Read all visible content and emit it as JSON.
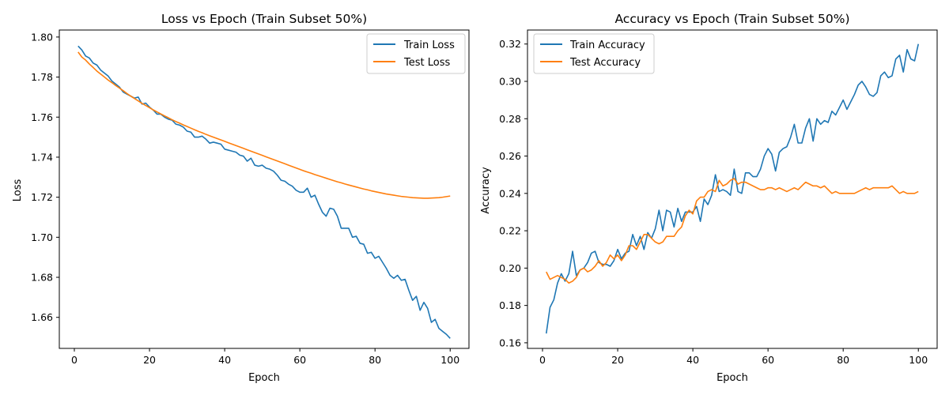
{
  "chart_data": [
    {
      "type": "line",
      "title": "Loss vs Epoch (Train Subset 50%)",
      "xlabel": "Epoch",
      "ylabel": "Loss",
      "xlim": [
        -4,
        105
      ],
      "ylim": [
        1.6445,
        1.8035
      ],
      "xticks": [
        0,
        20,
        40,
        60,
        80,
        100
      ],
      "yticks": [
        1.66,
        1.68,
        1.7,
        1.72,
        1.74,
        1.76,
        1.78,
        1.8
      ],
      "ytick_format": 2,
      "grid": false,
      "legend": "top-right",
      "x": [
        1,
        2,
        3,
        4,
        5,
        6,
        7,
        8,
        9,
        10,
        11,
        12,
        13,
        14,
        15,
        16,
        17,
        18,
        19,
        20,
        21,
        22,
        23,
        24,
        25,
        26,
        27,
        28,
        29,
        30,
        31,
        32,
        33,
        34,
        35,
        36,
        37,
        38,
        39,
        40,
        41,
        42,
        43,
        44,
        45,
        46,
        47,
        48,
        49,
        50,
        51,
        52,
        53,
        54,
        55,
        56,
        57,
        58,
        59,
        60,
        61,
        62,
        63,
        64,
        65,
        66,
        67,
        68,
        69,
        70,
        71,
        72,
        73,
        74,
        75,
        76,
        77,
        78,
        79,
        80,
        81,
        82,
        83,
        84,
        85,
        86,
        87,
        88,
        89,
        90,
        91,
        92,
        93,
        94,
        95,
        96,
        97,
        98,
        99,
        100
      ],
      "series": [
        {
          "name": "Train Loss",
          "color": "#1f77b4",
          "values": [
            1.7955,
            1.7935,
            1.7905,
            1.7895,
            1.787,
            1.786,
            1.7835,
            1.782,
            1.7805,
            1.778,
            1.7765,
            1.775,
            1.7725,
            1.7715,
            1.7705,
            1.7695,
            1.77,
            1.7665,
            1.767,
            1.765,
            1.7635,
            1.7615,
            1.7615,
            1.76,
            1.759,
            1.7585,
            1.7565,
            1.756,
            1.755,
            1.753,
            1.7525,
            1.75,
            1.75,
            1.7505,
            1.749,
            1.747,
            1.7475,
            1.747,
            1.7465,
            1.744,
            1.7435,
            1.743,
            1.7425,
            1.741,
            1.7405,
            1.738,
            1.7395,
            1.736,
            1.7355,
            1.736,
            1.7345,
            1.734,
            1.733,
            1.731,
            1.7285,
            1.728,
            1.7265,
            1.7255,
            1.7235,
            1.7225,
            1.7225,
            1.7245,
            1.72,
            1.721,
            1.7165,
            1.7125,
            1.7105,
            1.7145,
            1.714,
            1.7105,
            1.7045,
            1.7045,
            1.7045,
            1.7,
            1.7005,
            1.697,
            1.6965,
            1.692,
            1.6925,
            1.6895,
            1.6905,
            1.6875,
            1.6845,
            1.681,
            1.6795,
            1.681,
            1.6785,
            1.679,
            1.6735,
            1.6685,
            1.6705,
            1.6635,
            1.6675,
            1.6645,
            1.6575,
            1.659,
            1.6545,
            1.653,
            1.6515,
            1.6495
          ]
        },
        {
          "name": "Test Loss",
          "color": "#ff7f0e",
          "values": [
            1.7925,
            1.79,
            1.7885,
            1.7865,
            1.7848,
            1.783,
            1.7815,
            1.78,
            1.7785,
            1.7772,
            1.7758,
            1.7745,
            1.7732,
            1.7718,
            1.7705,
            1.7693,
            1.7681,
            1.7669,
            1.7658,
            1.7647,
            1.7636,
            1.7626,
            1.7616,
            1.7606,
            1.7597,
            1.7587,
            1.7578,
            1.757,
            1.7561,
            1.7553,
            1.7545,
            1.7537,
            1.7529,
            1.7522,
            1.7514,
            1.7507,
            1.75,
            1.7493,
            1.7486,
            1.7479,
            1.7472,
            1.7465,
            1.7458,
            1.7451,
            1.7444,
            1.7437,
            1.743,
            1.7423,
            1.7416,
            1.7409,
            1.7402,
            1.7395,
            1.7388,
            1.7381,
            1.7374,
            1.7367,
            1.736,
            1.7353,
            1.7346,
            1.7339,
            1.7332,
            1.7326,
            1.732,
            1.7313,
            1.7307,
            1.7301,
            1.7295,
            1.7289,
            1.7283,
            1.7277,
            1.7272,
            1.7266,
            1.7261,
            1.7256,
            1.7251,
            1.7246,
            1.7241,
            1.7237,
            1.7232,
            1.7228,
            1.7224,
            1.722,
            1.7216,
            1.7213,
            1.721,
            1.7207,
            1.7204,
            1.7202,
            1.72,
            1.7198,
            1.7197,
            1.7196,
            1.7195,
            1.7195,
            1.7196,
            1.7197,
            1.7198,
            1.72,
            1.7203,
            1.7206
          ]
        }
      ]
    },
    {
      "type": "line",
      "title": "Accuracy vs Epoch (Train Subset 50%)",
      "xlabel": "Epoch",
      "ylabel": "Accuracy",
      "xlim": [
        -4,
        105
      ],
      "ylim": [
        0.157,
        0.3275
      ],
      "xticks": [
        0,
        20,
        40,
        60,
        80,
        100
      ],
      "yticks": [
        0.16,
        0.18,
        0.2,
        0.22,
        0.24,
        0.26,
        0.28,
        0.3,
        0.32
      ],
      "ytick_format": 2,
      "grid": false,
      "legend": "top-left",
      "x": [
        1,
        2,
        3,
        4,
        5,
        6,
        7,
        8,
        9,
        10,
        11,
        12,
        13,
        14,
        15,
        16,
        17,
        18,
        19,
        20,
        21,
        22,
        23,
        24,
        25,
        26,
        27,
        28,
        29,
        30,
        31,
        32,
        33,
        34,
        35,
        36,
        37,
        38,
        39,
        40,
        41,
        42,
        43,
        44,
        45,
        46,
        47,
        48,
        49,
        50,
        51,
        52,
        53,
        54,
        55,
        56,
        57,
        58,
        59,
        60,
        61,
        62,
        63,
        64,
        65,
        66,
        67,
        68,
        69,
        70,
        71,
        72,
        73,
        74,
        75,
        76,
        77,
        78,
        79,
        80,
        81,
        82,
        83,
        84,
        85,
        86,
        87,
        88,
        89,
        90,
        91,
        92,
        93,
        94,
        95,
        96,
        97,
        98,
        99,
        100
      ],
      "series": [
        {
          "name": "Train Accuracy",
          "color": "#1f77b4",
          "values": [
            0.165,
            0.179,
            0.183,
            0.192,
            0.197,
            0.193,
            0.197,
            0.209,
            0.196,
            0.199,
            0.2,
            0.203,
            0.208,
            0.209,
            0.203,
            0.202,
            0.202,
            0.201,
            0.204,
            0.21,
            0.205,
            0.208,
            0.209,
            0.218,
            0.212,
            0.217,
            0.21,
            0.219,
            0.216,
            0.221,
            0.231,
            0.22,
            0.231,
            0.23,
            0.222,
            0.232,
            0.225,
            0.23,
            0.23,
            0.23,
            0.233,
            0.225,
            0.237,
            0.234,
            0.239,
            0.25,
            0.241,
            0.242,
            0.241,
            0.239,
            0.253,
            0.241,
            0.24,
            0.251,
            0.251,
            0.249,
            0.249,
            0.253,
            0.26,
            0.264,
            0.261,
            0.252,
            0.262,
            0.264,
            0.265,
            0.27,
            0.277,
            0.267,
            0.267,
            0.275,
            0.28,
            0.268,
            0.28,
            0.277,
            0.279,
            0.278,
            0.284,
            0.282,
            0.286,
            0.29,
            0.285,
            0.289,
            0.293,
            0.298,
            0.3,
            0.297,
            0.293,
            0.292,
            0.294,
            0.303,
            0.305,
            0.302,
            0.303,
            0.312,
            0.314,
            0.305,
            0.317,
            0.312,
            0.311,
            0.32
          ]
        },
        {
          "name": "Test Accuracy",
          "color": "#ff7f0e",
          "values": [
            0.198,
            0.194,
            0.195,
            0.196,
            0.195,
            0.194,
            0.192,
            0.193,
            0.195,
            0.199,
            0.2,
            0.198,
            0.199,
            0.201,
            0.204,
            0.201,
            0.203,
            0.207,
            0.205,
            0.207,
            0.204,
            0.207,
            0.212,
            0.212,
            0.21,
            0.214,
            0.218,
            0.218,
            0.216,
            0.214,
            0.213,
            0.214,
            0.217,
            0.217,
            0.217,
            0.22,
            0.222,
            0.228,
            0.231,
            0.229,
            0.236,
            0.238,
            0.238,
            0.241,
            0.242,
            0.241,
            0.247,
            0.244,
            0.245,
            0.247,
            0.248,
            0.245,
            0.246,
            0.246,
            0.245,
            0.244,
            0.243,
            0.242,
            0.242,
            0.243,
            0.243,
            0.242,
            0.243,
            0.242,
            0.241,
            0.242,
            0.243,
            0.242,
            0.244,
            0.246,
            0.245,
            0.244,
            0.244,
            0.243,
            0.244,
            0.242,
            0.24,
            0.241,
            0.24,
            0.24,
            0.24,
            0.24,
            0.24,
            0.241,
            0.242,
            0.243,
            0.242,
            0.243,
            0.243,
            0.243,
            0.243,
            0.243,
            0.244,
            0.242,
            0.24,
            0.241,
            0.24,
            0.24,
            0.24,
            0.241
          ]
        }
      ]
    }
  ]
}
